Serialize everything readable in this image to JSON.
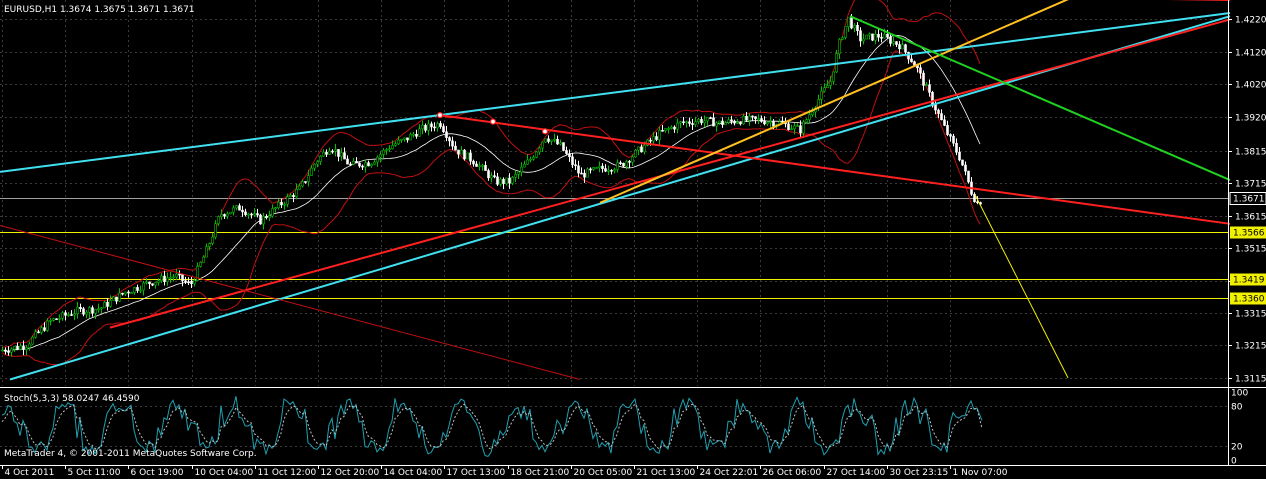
{
  "window": {
    "symbol_header": "EURUSD,H1  1.3674 1.3675 1.3671 1.3671",
    "indicator_header": "Stoch(5,3,3) 58.0247 46.4590",
    "copyright": "MetaTrader 4, © 2001-2011 MetaQuotes Software Corp."
  },
  "colors": {
    "background": "#000000",
    "grid": "#3a3a3a",
    "bull": "#00c000",
    "bear": "#ffffff",
    "cyan_line": "#40e0f0",
    "red_line": "#ff2020",
    "orange_line": "#ffc020",
    "green_line": "#20d020",
    "yellow_hline": "#f0f000",
    "bollinger": "#c01010",
    "stoch_main": "#20a0b0",
    "stoch_signal": "#c0c0c0"
  },
  "chart_data": {
    "type": "candlestick",
    "symbol": "EURUSD",
    "timeframe": "H1",
    "last": {
      "open": 1.3674,
      "high": 1.3675,
      "low": 1.3671,
      "close": 1.3671
    },
    "ylim": [
      1.309,
      1.428
    ],
    "y_ticks": [
      1.422,
      1.412,
      1.402,
      1.392,
      1.3815,
      1.3715,
      1.3615,
      1.3515,
      1.3415,
      1.3315,
      1.3215,
      1.3115
    ],
    "y_tick_labels": [
      "1.4220",
      "1.4120",
      "1.4020",
      "1.3920",
      "1.3815",
      "1.3715",
      "1.3615",
      "1.3515",
      "1.3415",
      "1.3315",
      "1.3215",
      "1.3115"
    ],
    "x_labels": [
      "4 Oct 2011",
      "5 Oct 11:00",
      "6 Oct 19:00",
      "10 Oct 04:00",
      "11 Oct 12:00",
      "12 Oct 20:00",
      "14 Oct 04:00",
      "17 Oct 13:00",
      "18 Oct 21:00",
      "20 Oct 05:00",
      "21 Oct 13:00",
      "24 Oct 22:01",
      "26 Oct 06:00",
      "27 Oct 14:00",
      "30 Oct 23:15",
      "1 Nov 07:00"
    ],
    "price_path": [
      [
        0,
        1.32
      ],
      [
        25,
        1.3215
      ],
      [
        50,
        1.329
      ],
      [
        75,
        1.332
      ],
      [
        100,
        1.333
      ],
      [
        125,
        1.338
      ],
      [
        150,
        1.341
      ],
      [
        175,
        1.343
      ],
      [
        190,
        1.34
      ],
      [
        205,
        1.35
      ],
      [
        220,
        1.362
      ],
      [
        240,
        1.364
      ],
      [
        260,
        1.36
      ],
      [
        280,
        1.365
      ],
      [
        300,
        1.37
      ],
      [
        315,
        1.378
      ],
      [
        330,
        1.383
      ],
      [
        350,
        1.377
      ],
      [
        370,
        1.378
      ],
      [
        390,
        1.383
      ],
      [
        405,
        1.385
      ],
      [
        420,
        1.388
      ],
      [
        440,
        1.39
      ],
      [
        455,
        1.382
      ],
      [
        475,
        1.378
      ],
      [
        495,
        1.372
      ],
      [
        510,
        1.372
      ],
      [
        530,
        1.379
      ],
      [
        545,
        1.386
      ],
      [
        560,
        1.383
      ],
      [
        580,
        1.374
      ],
      [
        600,
        1.376
      ],
      [
        620,
        1.377
      ],
      [
        640,
        1.382
      ],
      [
        660,
        1.387
      ],
      [
        680,
        1.39
      ],
      [
        700,
        1.391
      ],
      [
        720,
        1.39
      ],
      [
        740,
        1.391
      ],
      [
        760,
        1.391
      ],
      [
        780,
        1.39
      ],
      [
        800,
        1.388
      ],
      [
        815,
        1.396
      ],
      [
        830,
        1.403
      ],
      [
        840,
        1.416
      ],
      [
        848,
        1.422
      ],
      [
        860,
        1.416
      ],
      [
        880,
        1.417
      ],
      [
        900,
        1.414
      ],
      [
        915,
        1.408
      ],
      [
        930,
        1.398
      ],
      [
        945,
        1.388
      ],
      [
        960,
        1.379
      ],
      [
        972,
        1.368
      ],
      [
        978,
        1.365
      ],
      [
        982,
        1.3671
      ]
    ],
    "trendlines": [
      {
        "color": "cyan_line",
        "p1": [
          0,
          1.375
        ],
        "p2": [
          1230,
          1.424
        ]
      },
      {
        "color": "cyan_line",
        "p1": [
          10,
          1.311
        ],
        "p2": [
          1230,
          1.423
        ]
      },
      {
        "color": "red_line",
        "p1": [
          110,
          1.327
        ],
        "p2": [
          1230,
          1.422
        ]
      },
      {
        "color": "red_line",
        "p1": [
          440,
          1.3925
        ],
        "p2": [
          1230,
          1.359
        ]
      },
      {
        "color": "red_line",
        "p1": [
          1130,
          1.4285
        ],
        "p2": [
          1230,
          1.428
        ]
      },
      {
        "color": "orange_line",
        "p1": [
          600,
          1.3655
        ],
        "p2": [
          1070,
          1.4285
        ]
      },
      {
        "color": "green_line",
        "p1": [
          850,
          1.423
        ],
        "p2": [
          1230,
          1.3725
        ]
      },
      {
        "color": "bollinger",
        "p1": [
          0,
          1.3585
        ],
        "p2": [
          580,
          1.311
        ]
      },
      {
        "color": "yellow_hline",
        "p1": [
          975,
          1.368
        ],
        "p2": [
          1068,
          1.3115
        ]
      }
    ],
    "markers": [
      [
        440,
        1.3925
      ],
      [
        493,
        1.3905
      ],
      [
        545,
        1.3875
      ]
    ],
    "horizontal_levels": [
      {
        "price": 1.3671,
        "label": "1.3671",
        "style": "current"
      },
      {
        "price": 1.3566,
        "label": "1.3566",
        "style": "yellow"
      },
      {
        "price": 1.3419,
        "label": "1.3419",
        "style": "yellow"
      },
      {
        "price": 1.336,
        "label": "1.3360",
        "style": "yellow"
      }
    ],
    "stochastic": {
      "params": "5,3,3",
      "main": 58.0247,
      "signal": 46.459,
      "y_ticks": [
        100,
        80,
        20,
        0
      ],
      "y_tick_labels": [
        "100",
        "80",
        "20",
        "0"
      ]
    }
  }
}
